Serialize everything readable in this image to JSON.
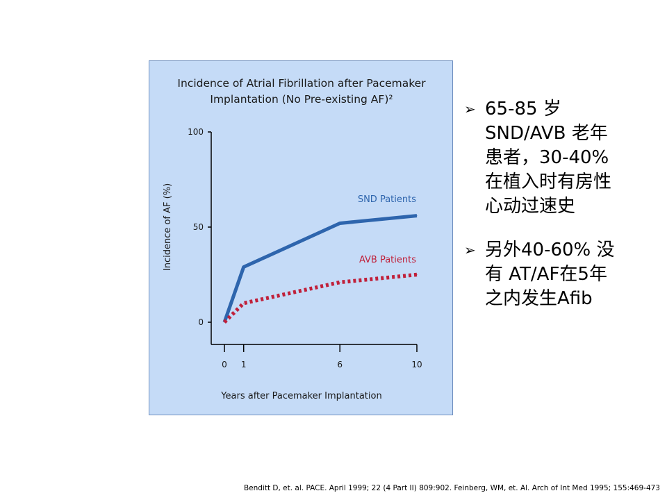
{
  "chart_data": {
    "type": "line",
    "title_lines": [
      "Incidence of Atrial Fibrillation after Pacemaker",
      "Implantation (No Pre-existing AF)²"
    ],
    "xlabel": "Years after Pacemaker Implantation",
    "ylabel": "Incidence of AF (%)",
    "x_ticks": [
      0,
      1,
      6,
      10
    ],
    "y_ticks": [
      0,
      50,
      100
    ],
    "xlim": [
      0,
      10
    ],
    "ylim": [
      0,
      100
    ],
    "grid": false,
    "series": [
      {
        "name": "SND Patients",
        "color": "#2e65ad",
        "style": "solid",
        "x": [
          0,
          1,
          6,
          10
        ],
        "y": [
          0,
          29,
          52,
          56
        ]
      },
      {
        "name": "AVB Patients",
        "color": "#c0203a",
        "style": "dotted",
        "x": [
          0,
          1,
          6,
          10
        ],
        "y": [
          0,
          10,
          21,
          25
        ]
      }
    ]
  },
  "bullets": [
    {
      "icon": "arrow-bullet-icon",
      "text": "65-85 岁\nSND/AVB 老年\n患者，30-40%\n在植入时有房性\n心动过速史"
    },
    {
      "icon": "arrow-bullet-icon",
      "text": "另外40-60% 没\n有 AT/AF在5年\n之内发生Afib"
    }
  ],
  "citation": "Benditt D, et. al. PACE. April 1999; 22 (4 Part II) 809:902. Feinberg, WM, et. Al. Arch of Int Med 1995; 155:469-473"
}
